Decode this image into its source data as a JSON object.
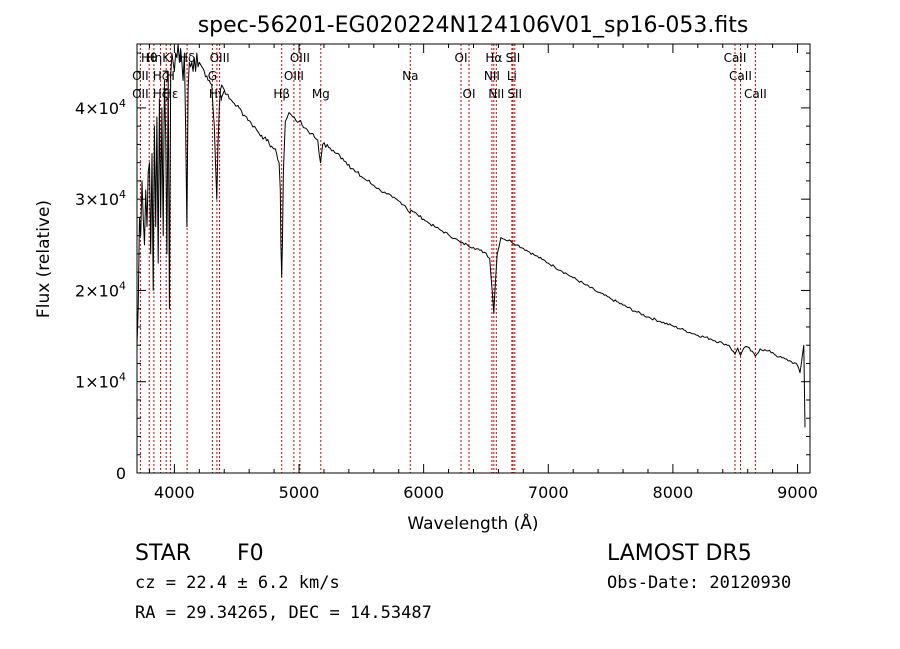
{
  "chart_data": {
    "type": "line",
    "title": "spec-56201-EG020224N124106V01_sp16-053.fits",
    "xlabel": "Wavelength (Å)",
    "ylabel": "Flux (relative)",
    "xlim": [
      3700,
      9100
    ],
    "ylim": [
      0,
      47000
    ],
    "x_ticks": [
      4000,
      5000,
      6000,
      7000,
      8000,
      9000
    ],
    "x_tick_labels": [
      "4000",
      "5000",
      "6000",
      "7000",
      "8000",
      "9000"
    ],
    "y_ticks": [
      0,
      10000,
      20000,
      30000,
      40000
    ],
    "y_tick_labels": [
      "0",
      "1×10",
      "2×10",
      "3×10",
      "4×10"
    ],
    "y_tick_exponent": "4",
    "grid": false,
    "series": [
      {
        "color": "#000000",
        "x": [
          3700,
          3710,
          3720,
          3730,
          3740,
          3750,
          3760,
          3770,
          3780,
          3790,
          3800,
          3810,
          3820,
          3830,
          3840,
          3850,
          3860,
          3870,
          3880,
          3890,
          3900,
          3910,
          3920,
          3930,
          3940,
          3950,
          3960,
          3970,
          3980,
          3990,
          4000,
          4010,
          4020,
          4030,
          4040,
          4050,
          4060,
          4070,
          4080,
          4090,
          4100,
          4110,
          4120,
          4130,
          4140,
          4150,
          4160,
          4170,
          4180,
          4190,
          4200,
          4220,
          4240,
          4260,
          4280,
          4300,
          4310,
          4320,
          4330,
          4340,
          4350,
          4360,
          4370,
          4380,
          4400,
          4420,
          4440,
          4460,
          4480,
          4500,
          4520,
          4540,
          4560,
          4580,
          4600,
          4620,
          4640,
          4660,
          4680,
          4700,
          4720,
          4740,
          4760,
          4780,
          4800,
          4820,
          4840,
          4850,
          4855,
          4861,
          4867,
          4875,
          4890,
          4920,
          4950,
          5000,
          5050,
          5100,
          5150,
          5172,
          5190,
          5250,
          5300,
          5350,
          5400,
          5450,
          5500,
          5550,
          5600,
          5650,
          5700,
          5750,
          5800,
          5850,
          5889,
          5895,
          5900,
          5950,
          6000,
          6050,
          6100,
          6150,
          6200,
          6250,
          6300,
          6350,
          6400,
          6450,
          6500,
          6530,
          6550,
          6563,
          6570,
          6590,
          6620,
          6650,
          6700,
          6750,
          6800,
          6850,
          6900,
          6950,
          7000,
          7050,
          7100,
          7150,
          7200,
          7300,
          7400,
          7500,
          7600,
          7700,
          7800,
          7900,
          8000,
          8100,
          8200,
          8300,
          8400,
          8450,
          8498,
          8520,
          8542,
          8570,
          8600,
          8662,
          8700,
          8750,
          8800,
          8850,
          8900,
          8950,
          9000,
          9020,
          9040,
          9050,
          9060
        ],
        "y": [
          14000,
          18000,
          28000,
          26000,
          32000,
          28000,
          25000,
          31000,
          27000,
          33000,
          34000,
          24000,
          35000,
          20000,
          38000,
          27000,
          39000,
          23000,
          41000,
          28000,
          40000,
          26000,
          43000,
          37000,
          24000,
          44000,
          18000,
          43500,
          46000,
          45000,
          44000,
          46000,
          45500,
          47000,
          45000,
          46500,
          45000,
          43000,
          46000,
          38000,
          27000,
          42000,
          45000,
          44500,
          45000,
          44000,
          45500,
          44000,
          46000,
          44500,
          45000,
          44500,
          44000,
          43500,
          43000,
          42500,
          40000,
          38000,
          34000,
          30000,
          36000,
          40000,
          42000,
          42500,
          42000,
          41500,
          41000,
          40800,
          40500,
          40200,
          40000,
          39600,
          39200,
          39000,
          38600,
          38200,
          38000,
          37600,
          37200,
          37000,
          36700,
          36400,
          36100,
          35800,
          35500,
          35000,
          34000,
          31000,
          25000,
          21500,
          25000,
          33000,
          38500,
          39500,
          39000,
          38500,
          37800,
          37200,
          36500,
          34000,
          36000,
          35600,
          35000,
          34500,
          33800,
          33000,
          32500,
          32000,
          31500,
          31000,
          30600,
          30200,
          29800,
          29300,
          28500,
          28700,
          28800,
          28300,
          27800,
          27300,
          26900,
          26500,
          26100,
          25700,
          25200,
          25000,
          24700,
          24400,
          24100,
          23500,
          20000,
          17500,
          19500,
          24000,
          25800,
          25600,
          25400,
          25000,
          24600,
          24200,
          23800,
          23400,
          23000,
          22600,
          22200,
          21800,
          21400,
          20600,
          19800,
          19100,
          18400,
          17700,
          17100,
          16600,
          16100,
          15600,
          15100,
          14700,
          14200,
          14000,
          13000,
          13700,
          12900,
          13700,
          13800,
          12800,
          13600,
          13400,
          13200,
          12700,
          12500,
          12200,
          11800,
          11000,
          13000,
          14000,
          5000
        ]
      }
    ],
    "line_labels": [
      {
        "name": "Hθ",
        "wavelength": 3798,
        "row": 1
      },
      {
        "name": "OII",
        "wavelength": 3727,
        "row": 2
      },
      {
        "name": "OII",
        "wavelength": 3727,
        "row": 3
      },
      {
        "name": "Hη",
        "wavelength": 3836,
        "row": 1
      },
      {
        "name": "Hζ",
        "wavelength": 3889,
        "row": 2
      },
      {
        "name": "Hζ",
        "wavelength": 3889,
        "row": 3
      },
      {
        "name": "K",
        "wavelength": 3934,
        "row": 1
      },
      {
        "name": "H",
        "wavelength": 3968,
        "row": 2
      },
      {
        "name": "Hε",
        "wavelength": 3970,
        "row": 3
      },
      {
        "name": "Hδ",
        "wavelength": 4102,
        "row": 1
      },
      {
        "name": "G",
        "wavelength": 4305,
        "row": 2
      },
      {
        "name": "OIII",
        "wavelength": 4363,
        "row": 1
      },
      {
        "name": "Hγ",
        "wavelength": 4341,
        "row": 3
      },
      {
        "name": "Hβ",
        "wavelength": 4861,
        "row": 3
      },
      {
        "name": "OIII",
        "wavelength": 4959,
        "row": 2
      },
      {
        "name": "OIII",
        "wavelength": 5007,
        "row": 1
      },
      {
        "name": "Mg",
        "wavelength": 5175,
        "row": 3
      },
      {
        "name": "Na",
        "wavelength": 5893,
        "row": 2
      },
      {
        "name": "OI",
        "wavelength": 6300,
        "row": 1
      },
      {
        "name": "OI",
        "wavelength": 6364,
        "row": 3
      },
      {
        "name": "Hα",
        "wavelength": 6563,
        "row": 1
      },
      {
        "name": "NII",
        "wavelength": 6548,
        "row": 2
      },
      {
        "name": "NII",
        "wavelength": 6583,
        "row": 3
      },
      {
        "name": "SII",
        "wavelength": 6717,
        "row": 1
      },
      {
        "name": "Li",
        "wavelength": 6708,
        "row": 2
      },
      {
        "name": "SII",
        "wavelength": 6731,
        "row": 3
      },
      {
        "name": "CaII",
        "wavelength": 8498,
        "row": 1
      },
      {
        "name": "CaII",
        "wavelength": 8542,
        "row": 2
      },
      {
        "name": "CaII",
        "wavelength": 8662,
        "row": 3
      }
    ],
    "marker_lines": [
      3727,
      3798,
      3836,
      3889,
      3934,
      3968,
      4102,
      4305,
      4341,
      4363,
      4861,
      4959,
      5007,
      5175,
      5893,
      6300,
      6364,
      6548,
      6563,
      6583,
      6708,
      6717,
      6731,
      8498,
      8542,
      8662
    ],
    "marker_color": "#cc0000"
  },
  "info": {
    "object_class": "STAR",
    "subclass": "F0",
    "survey": "LAMOST  DR5",
    "redshift": "cz = 22.4 ± 6.2 km/s",
    "obs_date": "Obs-Date: 20120930",
    "coords": "RA =  29.34265, DEC =  14.53487"
  }
}
